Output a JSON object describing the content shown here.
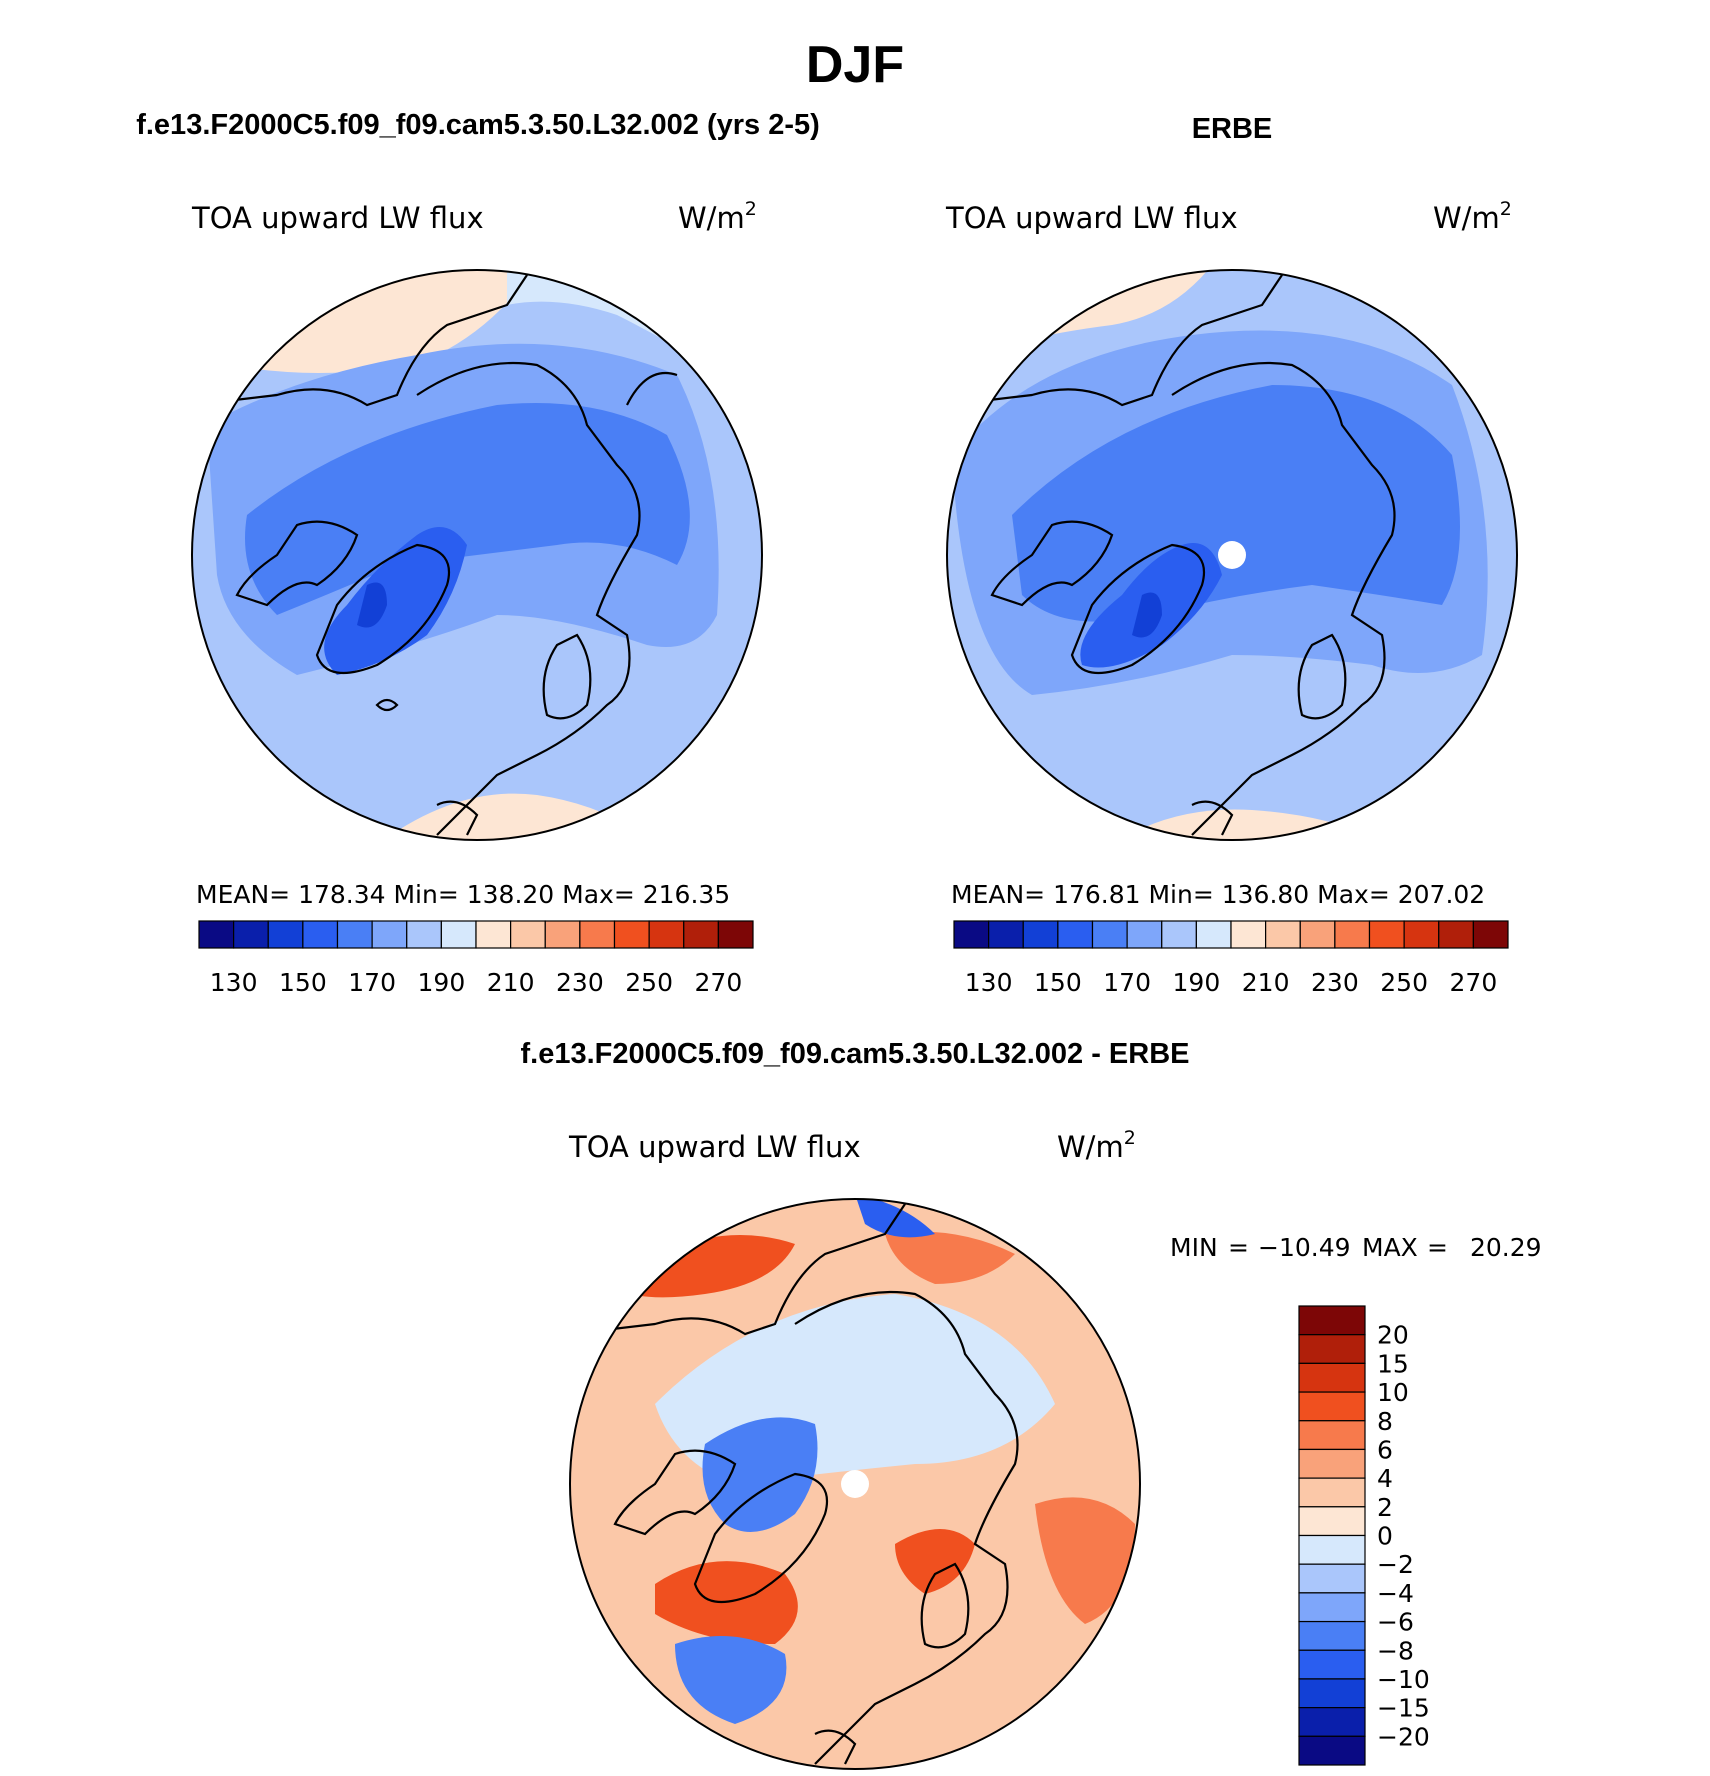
{
  "figure": {
    "title": "DJF"
  },
  "panels": [
    {
      "heading": "f.e13.F2000C5.f09_f09.cam5.3.50.L32.002 (yrs 2-5)",
      "variable": "TOA upward LW flux",
      "units_base": "W/m",
      "units_exp": "2",
      "stats": "MEAN= 178.34   Min= 138.20   Max= 216.35",
      "has_pole_hole": false
    },
    {
      "heading": "ERBE",
      "variable": "TOA upward LW flux",
      "units_base": "W/m",
      "units_exp": "2",
      "stats": "MEAN= 176.81   Min= 136.80   Max= 207.02",
      "has_pole_hole": true
    }
  ],
  "abs_colorbar": {
    "colors": [
      "#0a0a84",
      "#0a1fab",
      "#1240d6",
      "#2a5ef0",
      "#4a7ff5",
      "#7ea6fa",
      "#aac6fb",
      "#d6e8fc",
      "#fde6d4",
      "#fbc8a8",
      "#f9a27a",
      "#f77a4c",
      "#f0501f",
      "#d63410",
      "#b01f0a",
      "#7d0606"
    ],
    "tick_labels": [
      "130",
      "150",
      "170",
      "190",
      "210",
      "230",
      "250",
      "270"
    ]
  },
  "diff_panel": {
    "heading": "f.e13.F2000C5.f09_f09.cam5.3.50.L32.002 - ERBE",
    "variable": "TOA upward LW flux",
    "units_base": "W/m",
    "units_exp": "2",
    "min_label": "MIN",
    "min_value": "−10.49",
    "max_label": "MAX",
    "max_value": "20.29"
  },
  "diff_colorbar": {
    "colors_top_to_bottom": [
      "#7d0606",
      "#b01f0a",
      "#d63410",
      "#f0501f",
      "#f77a4c",
      "#f9a27a",
      "#fbc8a8",
      "#fde6d4",
      "#d6e8fc",
      "#aac6fb",
      "#7ea6fa",
      "#4a7ff5",
      "#2a5ef0",
      "#1240d6",
      "#0a1fab",
      "#0a0a84"
    ],
    "tick_labels": [
      "20",
      "15",
      "10",
      "8",
      "6",
      "4",
      "2",
      "0",
      "−2",
      "−4",
      "−6",
      "−8",
      "−10",
      "−15",
      "−20"
    ]
  },
  "chart_data": [
    {
      "type": "heatmap",
      "title": "TOA upward LW flux",
      "projection": "north polar stereographic",
      "units": "W/m2",
      "mean": 178.34,
      "min": 138.2,
      "max": 216.35,
      "levels": [
        130,
        140,
        150,
        160,
        170,
        180,
        190,
        200,
        210,
        220,
        230,
        240,
        250,
        260,
        270
      ]
    },
    {
      "type": "heatmap",
      "title": "TOA upward LW flux",
      "projection": "north polar stereographic",
      "units": "W/m2",
      "mean": 176.81,
      "min": 136.8,
      "max": 207.02,
      "levels": [
        130,
        140,
        150,
        160,
        170,
        180,
        190,
        200,
        210,
        220,
        230,
        240,
        250,
        260,
        270
      ]
    },
    {
      "type": "heatmap",
      "title": "TOA upward LW flux",
      "projection": "north polar stereographic",
      "units": "W/m2",
      "min": -10.49,
      "max": 20.29,
      "levels": [
        -20,
        -15,
        -10,
        -8,
        -6,
        -4,
        -2,
        0,
        2,
        4,
        6,
        8,
        10,
        15,
        20
      ]
    }
  ]
}
